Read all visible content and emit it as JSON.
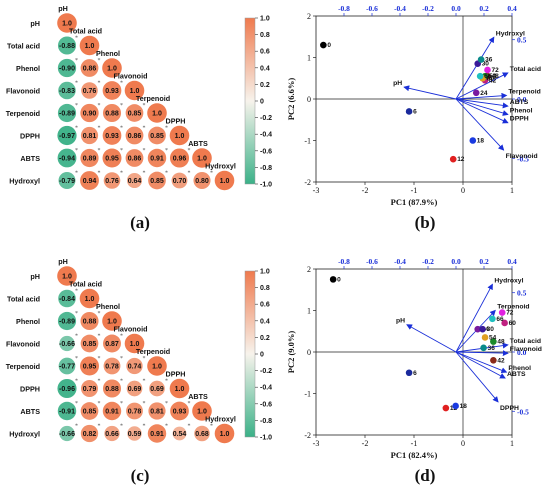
{
  "panels": [
    {
      "label": "(a)"
    },
    {
      "label": "(b)"
    },
    {
      "label": "(c)"
    },
    {
      "label": "(d)"
    }
  ],
  "palette": {
    "neg": "#3bb188",
    "mid": "#f7f3ec",
    "pos": "#ef7a4e",
    "vectors": "#1a2fd8",
    "topaxis": "#1a2fd8"
  },
  "chart_data": [
    {
      "type": "heatmap",
      "title": "(a)",
      "labels": [
        "pH",
        "Total acid",
        "Phenol",
        "Flavonoid",
        "Terpenoid",
        "DPPH",
        "ABTS",
        "Hydroxyl"
      ],
      "matrix": [
        [
          "1.0"
        ],
        [
          "-0.88",
          "1.0"
        ],
        [
          "-0.90",
          "0.86",
          "1.0"
        ],
        [
          "-0.83",
          "0.76",
          "0.93",
          "1.0"
        ],
        [
          "-0.89",
          "0.90",
          "0.88",
          "0.85",
          "1.0"
        ],
        [
          "-0.97",
          "0.81",
          "0.93",
          "0.86",
          "0.85",
          "1.0"
        ],
        [
          "-0.94",
          "0.89",
          "0.95",
          "0.86",
          "0.91",
          "0.96",
          "1.0"
        ],
        [
          "-0.79",
          "0.94",
          "0.76",
          "0.64",
          "0.85",
          "0.70",
          "0.80",
          "1.0"
        ]
      ],
      "colorbar": {
        "ticks": [
          "1.0",
          "0.8",
          "0.6",
          "0.4",
          "0.2",
          "0",
          "-0.2",
          "-0.4",
          "-0.6",
          "-0.8",
          "-1.0"
        ],
        "range": [
          -1,
          1
        ]
      }
    },
    {
      "type": "scatter",
      "title": "(b)",
      "xlabel": "PC1 (87.9%)",
      "ylabel": "PC2 (6.6%)",
      "xlim": [
        -3,
        1
      ],
      "ylim": [
        -2,
        2
      ],
      "xticks": [
        "-3",
        "-2",
        "-1",
        "0",
        "1"
      ],
      "yticks": [
        "2",
        "1",
        "0",
        "-1",
        "-2"
      ],
      "top_ticks": [
        "-0.8",
        "-0.6",
        "-0.4",
        "-0.2",
        "0.0",
        "0.2",
        "0.4"
      ],
      "right_ticks": [
        "0.5",
        "0.0",
        "-0.5"
      ],
      "secondary_xlim": [
        -1.0,
        0.4
      ],
      "secondary_ylim": [
        -0.7,
        0.7
      ],
      "points": [
        {
          "label": "0",
          "x": -2.85,
          "y": 1.3,
          "color": "#000000"
        },
        {
          "label": "6",
          "x": -1.1,
          "y": -0.3,
          "color": "#1a2a9c"
        },
        {
          "label": "12",
          "x": -0.2,
          "y": -1.45,
          "color": "#e02020"
        },
        {
          "label": "18",
          "x": 0.2,
          "y": -1.0,
          "color": "#1a3ae0"
        },
        {
          "label": "24",
          "x": 0.27,
          "y": 0.15,
          "color": "#7a1aa0"
        },
        {
          "label": "30",
          "x": 0.3,
          "y": 0.85,
          "color": "#3a1a9a"
        },
        {
          "label": "36",
          "x": 0.37,
          "y": 0.95,
          "color": "#0a8a8a"
        },
        {
          "label": "42",
          "x": 0.45,
          "y": 0.45,
          "color": "#c02080"
        },
        {
          "label": "48",
          "x": 0.5,
          "y": 0.55,
          "color": "#8a2a1a"
        },
        {
          "label": "54",
          "x": 0.45,
          "y": 0.55,
          "color": "#1a8a2a"
        },
        {
          "label": "60",
          "x": 0.4,
          "y": 0.5,
          "color": "#e0a020"
        },
        {
          "label": "66",
          "x": 0.35,
          "y": 0.55,
          "color": "#20c0c0"
        },
        {
          "label": "72",
          "x": 0.5,
          "y": 0.7,
          "color": "#e020e0"
        }
      ],
      "loadings": [
        {
          "label": "Hydroxyl",
          "x": 0.27,
          "y": 0.52
        },
        {
          "label": "Total acid",
          "x": 0.37,
          "y": 0.22
        },
        {
          "label": "Terpenoid",
          "x": 0.36,
          "y": 0.03
        },
        {
          "label": "ABTS",
          "x": 0.37,
          "y": -0.06
        },
        {
          "label": "Phenol",
          "x": 0.37,
          "y": -0.13
        },
        {
          "label": "DPPH",
          "x": 0.37,
          "y": -0.2
        },
        {
          "label": "Flavonoid",
          "x": 0.34,
          "y": -0.43
        },
        {
          "label": "pH",
          "x": -0.37,
          "y": 0.1
        }
      ]
    },
    {
      "type": "heatmap",
      "title": "(c)",
      "labels": [
        "pH",
        "Total acid",
        "Phenol",
        "Flavonoid",
        "Terpenoid",
        "DPPH",
        "ABTS",
        "Hydroxyl"
      ],
      "matrix": [
        [
          "1.0"
        ],
        [
          "-0.84",
          "1.0"
        ],
        [
          "-0.89",
          "0.88",
          "1.0"
        ],
        [
          "-0.66",
          "0.85",
          "0.87",
          "1.0"
        ],
        [
          "-0.77",
          "0.95",
          "0.78",
          "0.74",
          "1.0"
        ],
        [
          "-0.96",
          "0.79",
          "0.88",
          "0.69",
          "0.69",
          "1.0"
        ],
        [
          "-0.91",
          "0.85",
          "0.91",
          "0.78",
          "0.81",
          "0.93",
          "1.0"
        ],
        [
          "-0.66",
          "0.82",
          "0.66",
          "0.59",
          "0.91",
          "0.54",
          "0.68",
          "1.0"
        ]
      ],
      "colorbar": {
        "ticks": [
          "1.0",
          "0.8",
          "0.6",
          "0.4",
          "0.2",
          "0",
          "-0.2",
          "-0.4",
          "-0.6",
          "-0.8",
          "-1.0"
        ],
        "range": [
          -1,
          1
        ]
      }
    },
    {
      "type": "scatter",
      "title": "(d)",
      "xlabel": "PC1 (82.4%)",
      "ylabel": "PC2 (9.0%)",
      "xlim": [
        -3,
        1
      ],
      "ylim": [
        -2,
        2
      ],
      "xticks": [
        "-3",
        "-2",
        "-1",
        "0",
        "1"
      ],
      "yticks": [
        "2",
        "1",
        "0",
        "-1",
        "-2"
      ],
      "top_ticks": [
        "-0.8",
        "-0.6",
        "-0.4",
        "-0.2",
        "0.0",
        "0.2",
        "0.4"
      ],
      "right_ticks": [
        "0.5",
        "0.0",
        "-0.5"
      ],
      "secondary_xlim": [
        -1.0,
        0.4
      ],
      "secondary_ylim": [
        -0.7,
        0.7
      ],
      "points": [
        {
          "label": "0",
          "x": -2.65,
          "y": 1.75,
          "color": "#000000"
        },
        {
          "label": "6",
          "x": -1.1,
          "y": -0.5,
          "color": "#1a2a9c"
        },
        {
          "label": "12",
          "x": -0.35,
          "y": -1.35,
          "color": "#e02020"
        },
        {
          "label": "18",
          "x": -0.15,
          "y": -1.3,
          "color": "#1a3ae0"
        },
        {
          "label": "24",
          "x": 0.3,
          "y": 0.55,
          "color": "#7a1aa0"
        },
        {
          "label": "30",
          "x": 0.4,
          "y": 0.55,
          "color": "#3a1a9a"
        },
        {
          "label": "36",
          "x": 0.42,
          "y": 0.1,
          "color": "#0a8a8a"
        },
        {
          "label": "42",
          "x": 0.62,
          "y": -0.2,
          "color": "#8a2a1a"
        },
        {
          "label": "48",
          "x": 0.62,
          "y": 0.25,
          "color": "#1a8a2a"
        },
        {
          "label": "54",
          "x": 0.45,
          "y": 0.35,
          "color": "#e0a020"
        },
        {
          "label": "60",
          "x": 0.85,
          "y": 0.7,
          "color": "#c02080"
        },
        {
          "label": "66",
          "x": 0.6,
          "y": 0.8,
          "color": "#20c0c0"
        },
        {
          "label": "72",
          "x": 0.8,
          "y": 0.95,
          "color": "#e020e0"
        }
      ],
      "loadings": [
        {
          "label": "Hydroxyl",
          "x": 0.26,
          "y": 0.57
        },
        {
          "label": "Terpenoid",
          "x": 0.28,
          "y": 0.35
        },
        {
          "label": "Total acid",
          "x": 0.37,
          "y": 0.06
        },
        {
          "label": "Flavonoid",
          "x": 0.37,
          "y": -0.01
        },
        {
          "label": "Phenol",
          "x": 0.36,
          "y": -0.17
        },
        {
          "label": "ABTS",
          "x": 0.35,
          "y": -0.22
        },
        {
          "label": "DPPH",
          "x": 0.3,
          "y": -0.42
        },
        {
          "label": "pH",
          "x": -0.35,
          "y": 0.23
        }
      ]
    }
  ]
}
